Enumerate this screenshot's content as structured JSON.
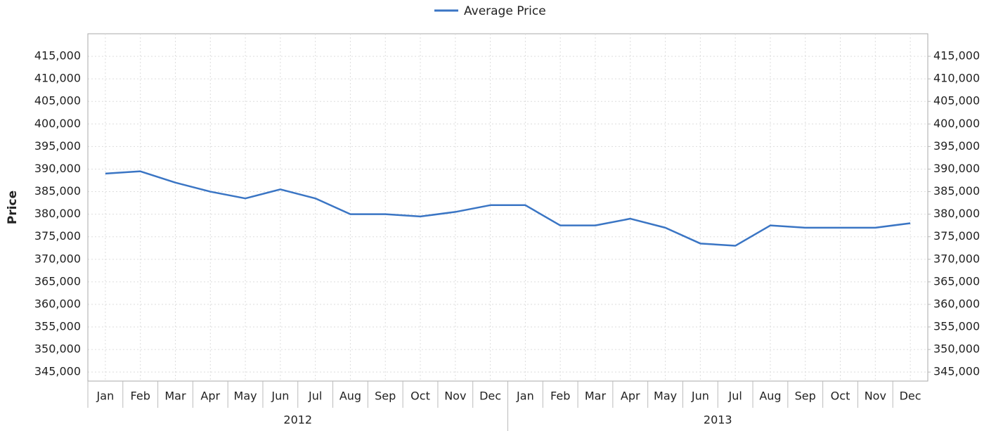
{
  "chart_data": {
    "type": "line",
    "y_label": "Price",
    "categories": [
      "Jan",
      "Feb",
      "Mar",
      "Apr",
      "May",
      "Jun",
      "Jul",
      "Aug",
      "Sep",
      "Oct",
      "Nov",
      "Dec",
      "Jan",
      "Feb",
      "Mar",
      "Apr",
      "May",
      "Jun",
      "Jul",
      "Aug",
      "Sep",
      "Oct",
      "Nov",
      "Dec"
    ],
    "category_groups": [
      "2012",
      "2013"
    ],
    "series": [
      {
        "name": "Average Price",
        "color": "#3a75c4",
        "values": [
          389000,
          389500,
          387000,
          385000,
          383500,
          385500,
          383500,
          380000,
          380000,
          379500,
          380500,
          382000,
          382000,
          377500,
          377500,
          379000,
          377000,
          373500,
          373000,
          377500,
          377000,
          377000,
          377000,
          378000
        ]
      }
    ],
    "ylim": [
      343000,
      420000
    ],
    "yticks": [
      {
        "value": 345000,
        "label": "345,000"
      },
      {
        "value": 350000,
        "label": "350,000"
      },
      {
        "value": 355000,
        "label": "355,000"
      },
      {
        "value": 360000,
        "label": "360,000"
      },
      {
        "value": 365000,
        "label": "365,000"
      },
      {
        "value": 370000,
        "label": "370,000"
      },
      {
        "value": 375000,
        "label": "375,000"
      },
      {
        "value": 380000,
        "label": "380,000"
      },
      {
        "value": 385000,
        "label": "385,000"
      },
      {
        "value": 390000,
        "label": "390,000"
      },
      {
        "value": 395000,
        "label": "395,000"
      },
      {
        "value": 400000,
        "label": "400,000"
      },
      {
        "value": 405000,
        "label": "405,000"
      },
      {
        "value": 410000,
        "label": "410,000"
      },
      {
        "value": 415000,
        "label": "415,000"
      }
    ],
    "y2lim": [
      343000,
      420000
    ],
    "y2ticks": [
      {
        "value": 345000,
        "label": "345,000"
      },
      {
        "value": 350000,
        "label": "350,000"
      },
      {
        "value": 355000,
        "label": "355,000"
      },
      {
        "value": 360000,
        "label": "360,000"
      },
      {
        "value": 365000,
        "label": "365,000"
      },
      {
        "value": 370000,
        "label": "370,000"
      },
      {
        "value": 375000,
        "label": "375,000"
      },
      {
        "value": 380000,
        "label": "380,000"
      },
      {
        "value": 385000,
        "label": "385,000"
      },
      {
        "value": 390000,
        "label": "390,000"
      },
      {
        "value": 395000,
        "label": "395,000"
      },
      {
        "value": 400000,
        "label": "400,000"
      },
      {
        "value": 405000,
        "label": "405,000"
      },
      {
        "value": 410000,
        "label": "410,000"
      },
      {
        "value": 415000,
        "label": "415,000"
      }
    ],
    "grid": true,
    "legend": "top"
  }
}
